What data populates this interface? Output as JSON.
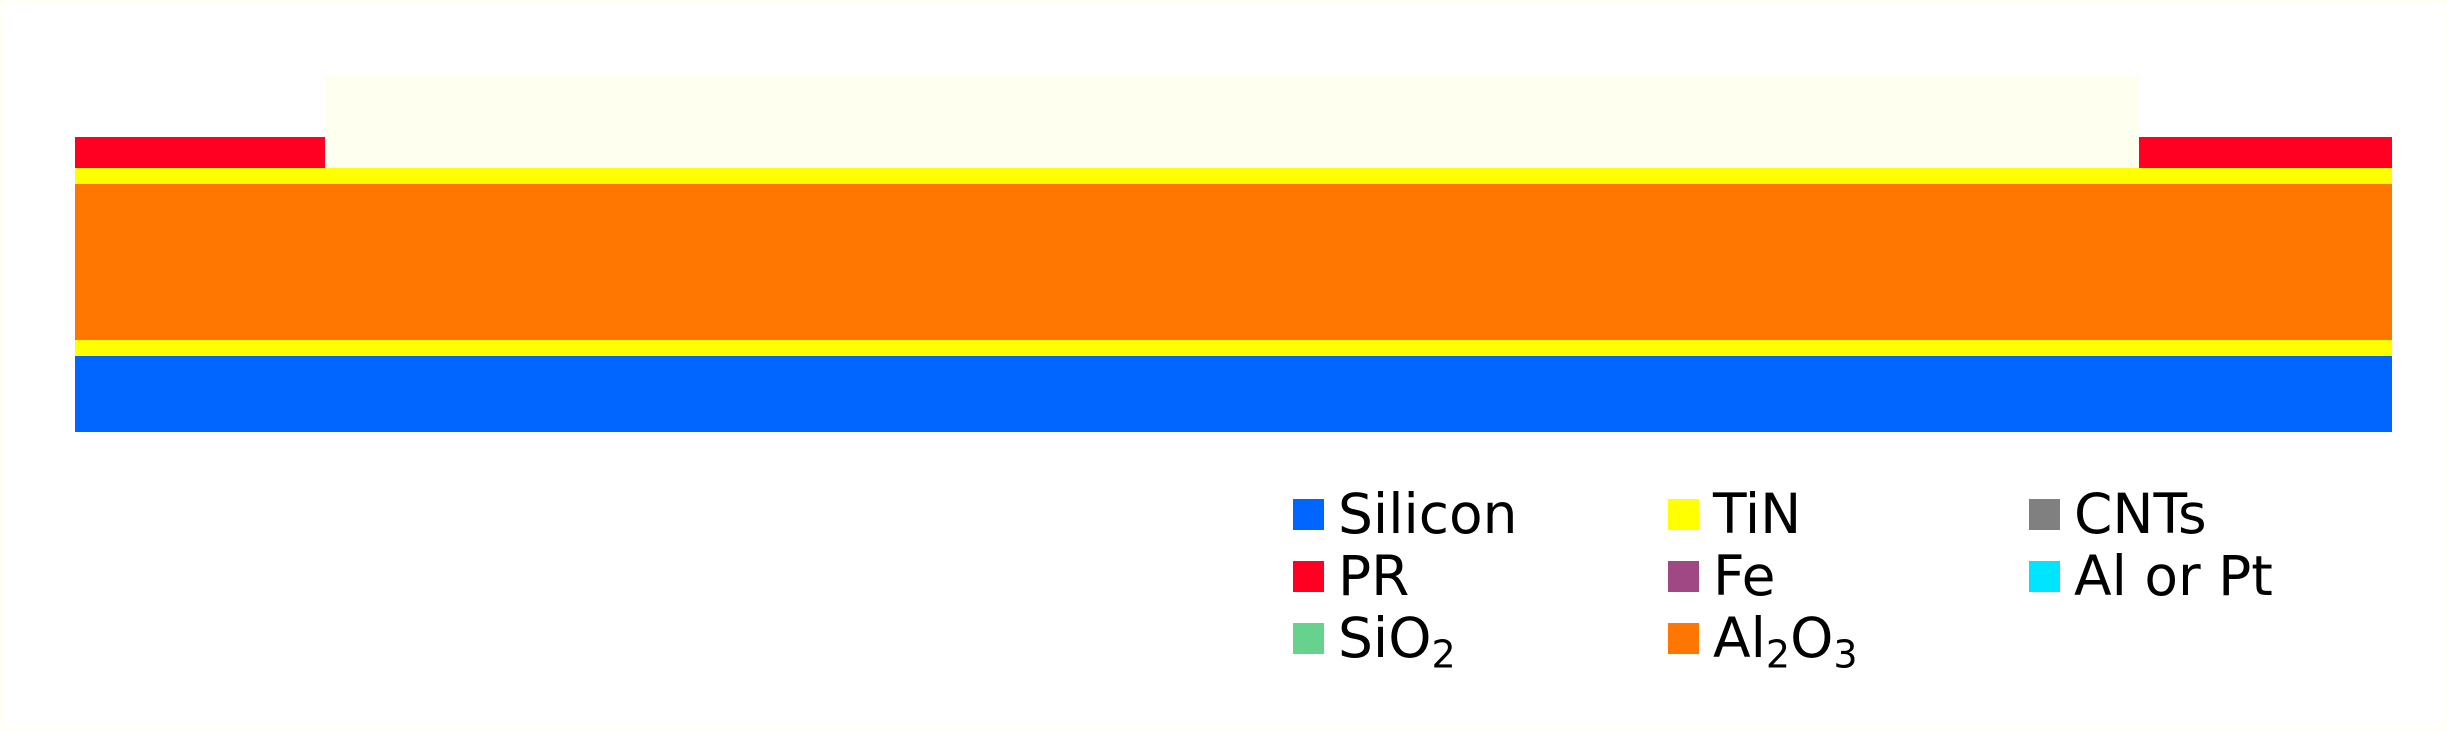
{
  "colors": {
    "page_border": "#fffff6",
    "background": "#ffffff",
    "silicon": "#0066ff",
    "pr": "#ff0022",
    "sio2": "#66d28e",
    "tin": "#ffff00",
    "fe": "#a04884",
    "al2o3": "#ff7700",
    "cnts": "#808080",
    "al_or_pt": "#00e5ff",
    "opening_fill": "#fffff0"
  },
  "legend": [
    {
      "label": "Silicon",
      "base": "Silicon",
      "sub": "",
      "tail": "",
      "color": "#0066ff"
    },
    {
      "label": "PR",
      "base": "PR",
      "sub": "",
      "tail": "",
      "color": "#ff0022"
    },
    {
      "label": "SiO2",
      "base": "SiO",
      "sub": "2",
      "tail": "",
      "color": "#66d28e"
    },
    {
      "label": "TiN",
      "base": "TiN",
      "sub": "",
      "tail": "",
      "color": "#ffff00"
    },
    {
      "label": "Fe",
      "base": "Fe",
      "sub": "",
      "tail": "",
      "color": "#a04884"
    },
    {
      "label": "Al2O3",
      "base": "Al",
      "sub": "2",
      "tail": "O",
      "sub2": "3",
      "color": "#ff7700"
    },
    {
      "label": "CNTs",
      "base": "CNTs",
      "sub": "",
      "tail": "",
      "color": "#808080"
    },
    {
      "label": "Al or Pt",
      "base": "Al or Pt",
      "sub": "",
      "tail": "",
      "color": "#00e5ff"
    }
  ]
}
